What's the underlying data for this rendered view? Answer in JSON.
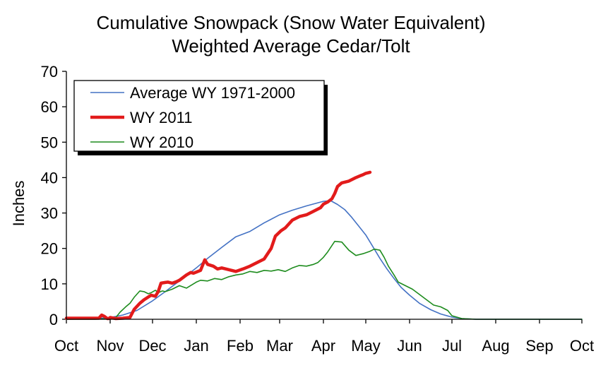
{
  "chart_data": {
    "type": "line",
    "title": "Cumulative Snowpack (Snow Water Equivalent)",
    "subtitle": "Weighted Average Cedar/Tolt",
    "xlabel": "",
    "ylabel": "Inches",
    "ylim": [
      0,
      70
    ],
    "yticks": [
      0,
      10,
      20,
      30,
      40,
      50,
      60,
      70
    ],
    "xlim": [
      0,
      365
    ],
    "xticks": [
      {
        "label": "Oct",
        "day": 0
      },
      {
        "label": "Nov",
        "day": 31
      },
      {
        "label": "Dec",
        "day": 61
      },
      {
        "label": "Jan",
        "day": 92
      },
      {
        "label": "Feb",
        "day": 123
      },
      {
        "label": "Mar",
        "day": 151
      },
      {
        "label": "Apr",
        "day": 182
      },
      {
        "label": "May",
        "day": 212
      },
      {
        "label": "Jun",
        "day": 243
      },
      {
        "label": "Jul",
        "day": 273
      },
      {
        "label": "Aug",
        "day": 304
      },
      {
        "label": "Sep",
        "day": 335
      },
      {
        "label": "Oct",
        "day": 365
      }
    ],
    "grid": false,
    "legend": "top-left",
    "series": [
      {
        "name": "Average WY 1971-2000",
        "color": "#4472c4",
        "x": [
          0,
          20,
          31,
          40,
          50,
          61,
          70,
          80,
          92,
          100,
          110,
          120,
          130,
          140,
          151,
          160,
          170,
          182,
          187,
          192,
          197,
          202,
          207,
          212,
          217,
          222,
          227,
          232,
          237,
          243,
          250,
          258,
          265,
          273,
          280,
          290,
          300,
          310,
          320,
          335,
          350,
          365
        ],
        "y": [
          0,
          0.2,
          0.5,
          1.2,
          2.5,
          5.2,
          7.8,
          10.8,
          14.5,
          17.2,
          20.3,
          23.3,
          24.8,
          27.2,
          29.5,
          30.8,
          32,
          33.3,
          33.5,
          32.4,
          31,
          28.8,
          26.3,
          23.8,
          20.5,
          17.2,
          14.2,
          11.5,
          9,
          6.8,
          4.5,
          2.7,
          1.5,
          0.6,
          0.2,
          0,
          0,
          0,
          0,
          0,
          0,
          0
        ]
      },
      {
        "name": "WY 2011",
        "color": "#e21b1b",
        "x": [
          0,
          15,
          23,
          25,
          27,
          29,
          30,
          31,
          35,
          40,
          45,
          48,
          52,
          55,
          60,
          63,
          65,
          67,
          70,
          72,
          75,
          78,
          80,
          85,
          88,
          90,
          95,
          98,
          100,
          104,
          107,
          110,
          115,
          120,
          125,
          130,
          135,
          140,
          145,
          148,
          152,
          155,
          160,
          165,
          170,
          175,
          180,
          182,
          185,
          188,
          190,
          192,
          195,
          200,
          205,
          208,
          210,
          212,
          215
        ],
        "y": [
          0.3,
          0.3,
          0.3,
          1.2,
          0.8,
          0.2,
          0.2,
          0.5,
          0.2,
          0.3,
          0.5,
          2.8,
          4.5,
          5.5,
          6.8,
          6.5,
          7.8,
          10.2,
          10.4,
          10.5,
          10.2,
          10.6,
          11,
          12.5,
          13.2,
          13,
          13.8,
          16.8,
          15.5,
          15,
          14.2,
          14.5,
          14,
          13.5,
          14.2,
          15,
          16,
          17,
          20,
          23.5,
          25,
          25.8,
          28,
          29,
          29.5,
          30.5,
          31.5,
          32.5,
          33.1,
          34,
          35.5,
          37.5,
          38.5,
          39,
          40,
          40.5,
          40.8,
          41.2,
          41.5
        ]
      },
      {
        "name": "WY 2010",
        "color": "#1e8c1e",
        "x": [
          0,
          20,
          31,
          35,
          38,
          42,
          45,
          48,
          52,
          55,
          58,
          60,
          63,
          65,
          68,
          70,
          75,
          80,
          85,
          92,
          95,
          100,
          105,
          110,
          115,
          120,
          125,
          130,
          135,
          140,
          145,
          150,
          155,
          160,
          165,
          170,
          175,
          178,
          182,
          185,
          190,
          195,
          200,
          205,
          210,
          215,
          218,
          222,
          225,
          228,
          232,
          235,
          240,
          245,
          250,
          255,
          260,
          265,
          270,
          273,
          280,
          290,
          300,
          320,
          340,
          365
        ],
        "y": [
          0,
          0,
          0.2,
          0.5,
          2,
          3.5,
          4.5,
          6.2,
          8,
          7.8,
          7.2,
          7.5,
          8.2,
          7.5,
          8,
          7.8,
          8.5,
          9.5,
          8.8,
          10.5,
          11,
          10.8,
          11.5,
          11.2,
          12,
          12.5,
          12.8,
          13.5,
          13.2,
          13.8,
          13.6,
          14,
          13.5,
          14.5,
          15.2,
          15,
          15.5,
          16,
          17.5,
          19,
          22,
          21.8,
          19.5,
          18,
          18.5,
          19.2,
          19.8,
          19.5,
          17.5,
          15,
          12.5,
          10.5,
          9.5,
          8.5,
          7,
          5.5,
          4,
          3.5,
          2.5,
          1,
          0.2,
          0,
          0,
          0,
          0,
          0
        ]
      }
    ]
  }
}
